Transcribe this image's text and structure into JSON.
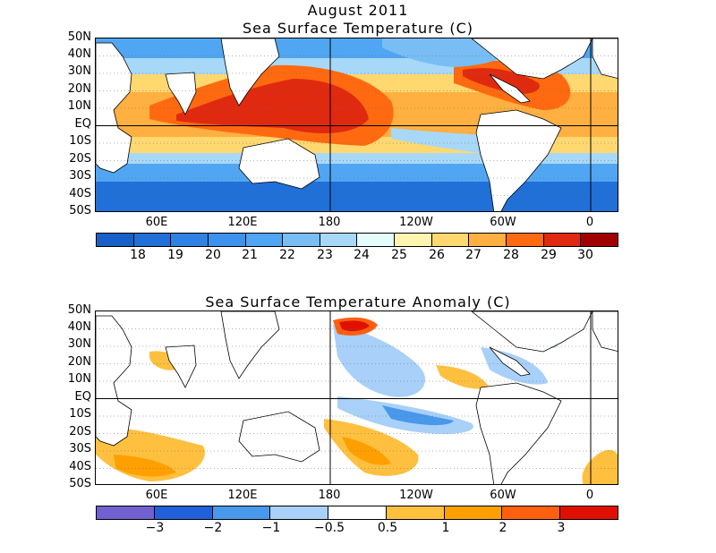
{
  "top": {
    "title_line1": "August 2011",
    "title_line2": "Sea Surface Temperature (C)",
    "lat_labels": [
      "50N",
      "40N",
      "30N",
      "20N",
      "10N",
      "EQ",
      "10S",
      "20S",
      "30S",
      "40S",
      "50S"
    ],
    "lon_labels": [
      "60E",
      "120E",
      "180",
      "120W",
      "60W",
      "0"
    ],
    "colorbar": {
      "colors": [
        "#1660c8",
        "#2070d8",
        "#2f82e4",
        "#3c92ec",
        "#50a6f2",
        "#78bef4",
        "#a8d8f8",
        "#e4fcfc",
        "#fff4b0",
        "#ffd870",
        "#ffb040",
        "#ff6a10",
        "#e02a10",
        "#a00000"
      ],
      "ticks": [
        "18",
        "19",
        "20",
        "21",
        "22",
        "23",
        "24",
        "25",
        "26",
        "27",
        "28",
        "29",
        "30"
      ]
    }
  },
  "bottom": {
    "title": "Sea Surface Temperature Anomaly (C)",
    "lat_labels": [
      "50N",
      "40N",
      "30N",
      "20N",
      "10N",
      "EQ",
      "10S",
      "20S",
      "30S",
      "40S",
      "50S"
    ],
    "lon_labels": [
      "60E",
      "120E",
      "180",
      "120W",
      "60W",
      "0"
    ],
    "colorbar": {
      "colors": [
        "#7060d0",
        "#2060d8",
        "#4898ec",
        "#a8d0f8",
        "#ffffff",
        "#ffc040",
        "#ffa000",
        "#ff6010",
        "#e01000"
      ],
      "ticks": [
        "−3",
        "−2",
        "−1",
        "−0.5",
        "0.5",
        "1",
        "2",
        "3"
      ]
    }
  }
}
